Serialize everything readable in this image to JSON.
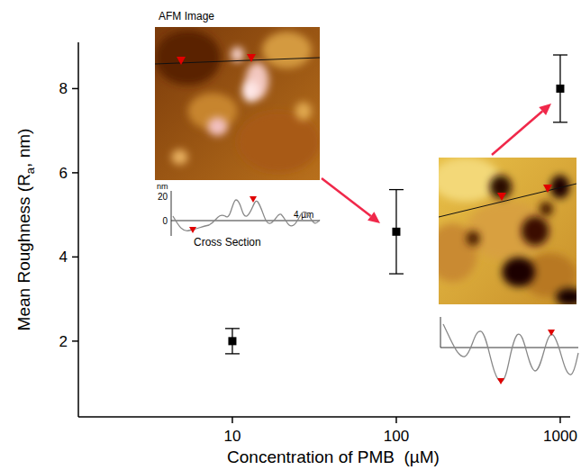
{
  "chart_data": {
    "type": "scatter",
    "x_label": "Concentration of PMB  (µM)",
    "y_label": "Mean Roughness (Ra, nm)",
    "x": [
      10,
      100,
      1000
    ],
    "values": [
      2.0,
      4.6,
      8.0
    ],
    "errors": [
      0.3,
      1.0,
      0.8
    ],
    "color": "#000000",
    "marker": "square",
    "log": "x",
    "xlim": [
      1.15,
      1150
    ],
    "xticks": [
      10,
      100,
      1000
    ],
    "ylim": [
      0.2,
      9.1
    ],
    "yticks": [
      2,
      4,
      6,
      8
    ],
    "grid": false,
    "annotations": [
      "AFM Image",
      "nm",
      "20",
      "0",
      "4 µm",
      "Cross Section"
    ]
  }
}
